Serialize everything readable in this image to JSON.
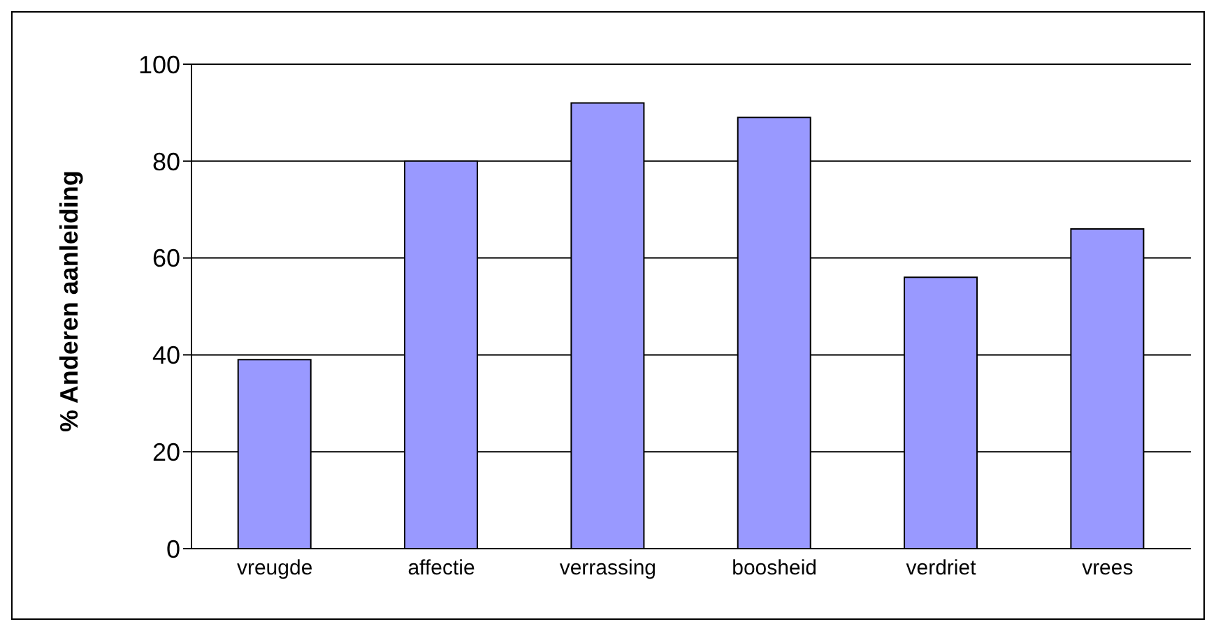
{
  "chart_data": {
    "type": "bar",
    "ylabel": "% Anderen aanleiding",
    "categories": [
      "vreugde",
      "affectie",
      "verrassing",
      "boosheid",
      "verdriet",
      "vrees"
    ],
    "values": [
      39,
      80,
      92,
      89,
      56,
      66
    ],
    "color": "#9999ff",
    "ylim": [
      0,
      100
    ],
    "yticks": [
      0,
      20,
      40,
      60,
      80,
      100
    ],
    "grid": "y",
    "legend": false
  }
}
